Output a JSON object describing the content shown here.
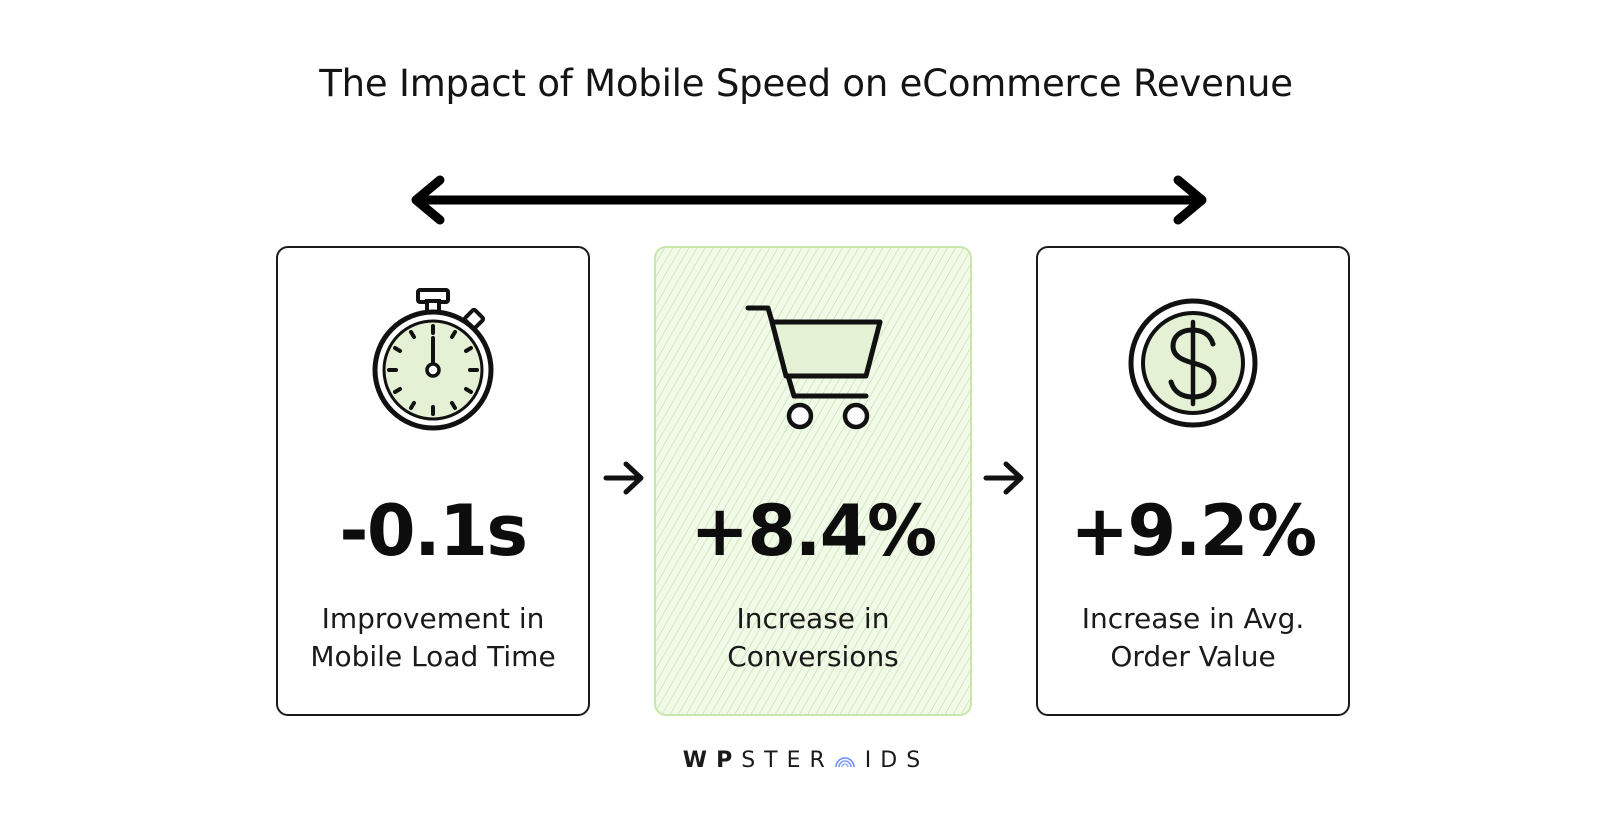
{
  "title": "The Impact of Mobile Speed on eCommerce Revenue",
  "cards": [
    {
      "icon": "stopwatch-icon",
      "value": "-0.1s",
      "label_lines": [
        "Improvement in",
        "Mobile Load Time"
      ]
    },
    {
      "icon": "shopping-cart-icon",
      "value": "+8.4%",
      "label_lines": [
        "Increase in",
        "Conversions"
      ],
      "highlighted": true
    },
    {
      "icon": "dollar-coin-icon",
      "value": "+9.2%",
      "label_lines": [
        "Increase in Avg.",
        "Order Value"
      ]
    }
  ],
  "brand": {
    "part_bold": "WP",
    "part_before_o": "STER",
    "part_after_o": "IDS"
  },
  "colors": {
    "ink": "#111111",
    "highlight_fill": "#f1f9e9",
    "highlight_border": "#c9e6ad",
    "icon_fill": "#e4f1d4",
    "brand_accent": "#6a8cff"
  }
}
